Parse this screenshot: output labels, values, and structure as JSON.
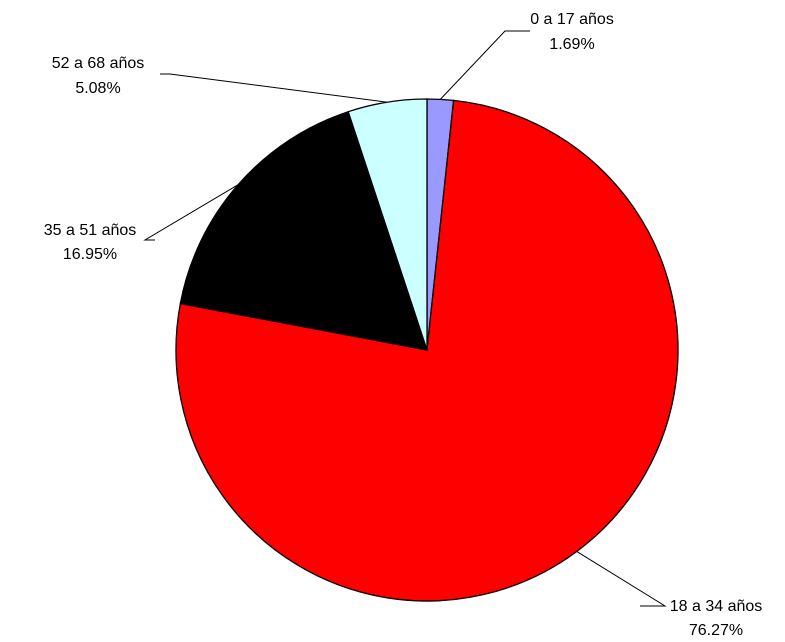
{
  "chart_data": {
    "type": "pie",
    "title": "",
    "slices": [
      {
        "label": "0 a 17 años",
        "value": 1.69,
        "value_label": "1.69%",
        "color": "#9999ff"
      },
      {
        "label": "18 a 34 años",
        "value": 76.27,
        "value_label": "76.27%",
        "color": "#ff0000"
      },
      {
        "label": "35 a 51 años",
        "value": 16.95,
        "value_label": "16.95%",
        "color": "#000000"
      },
      {
        "label": "52 a 68 años",
        "value": 5.08,
        "value_label": "5.08%",
        "color": "#ccffff"
      }
    ],
    "start": "12 o'clock",
    "direction": "clockwise",
    "legend": "none",
    "labels": "outside with leader lines"
  }
}
